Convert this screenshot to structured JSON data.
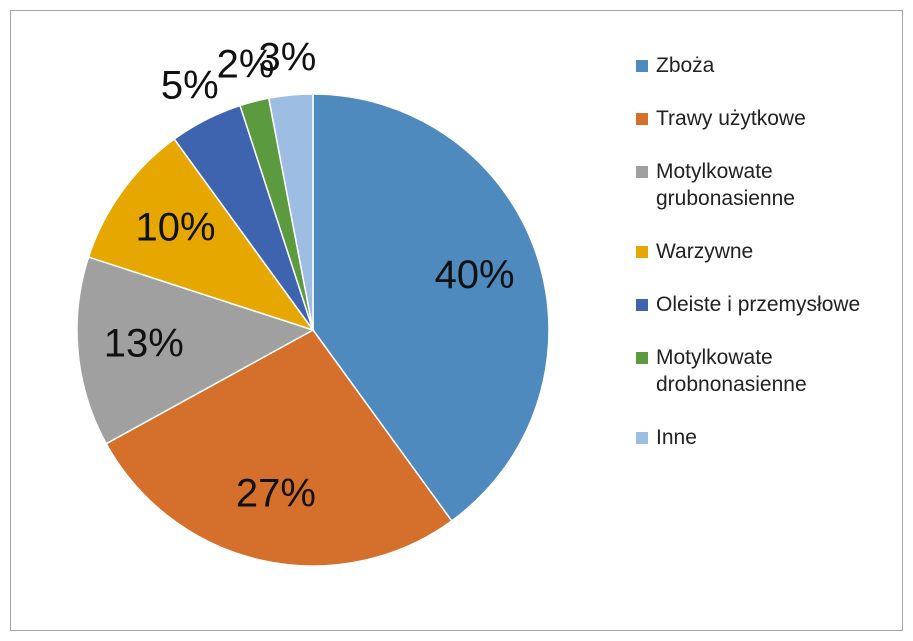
{
  "chart_data": {
    "type": "pie",
    "categories": [
      "Zboża",
      "Trawy użytkowe",
      "Motylkowate grubonasienne",
      "Warzywne",
      "Oleiste i przemysłowe",
      "Motylkowate drobnonasienne",
      "Inne"
    ],
    "values": [
      40,
      27,
      13,
      10,
      5,
      2,
      3
    ],
    "value_labels": [
      "40%",
      "27%",
      "13%",
      "10%",
      "5%",
      "2%",
      "3%"
    ],
    "colors": [
      "#4f8abf",
      "#d4702b",
      "#a0a0a0",
      "#e6a800",
      "#3e64b0",
      "#5b9a3e",
      "#9dbde2"
    ],
    "legend": "right"
  }
}
